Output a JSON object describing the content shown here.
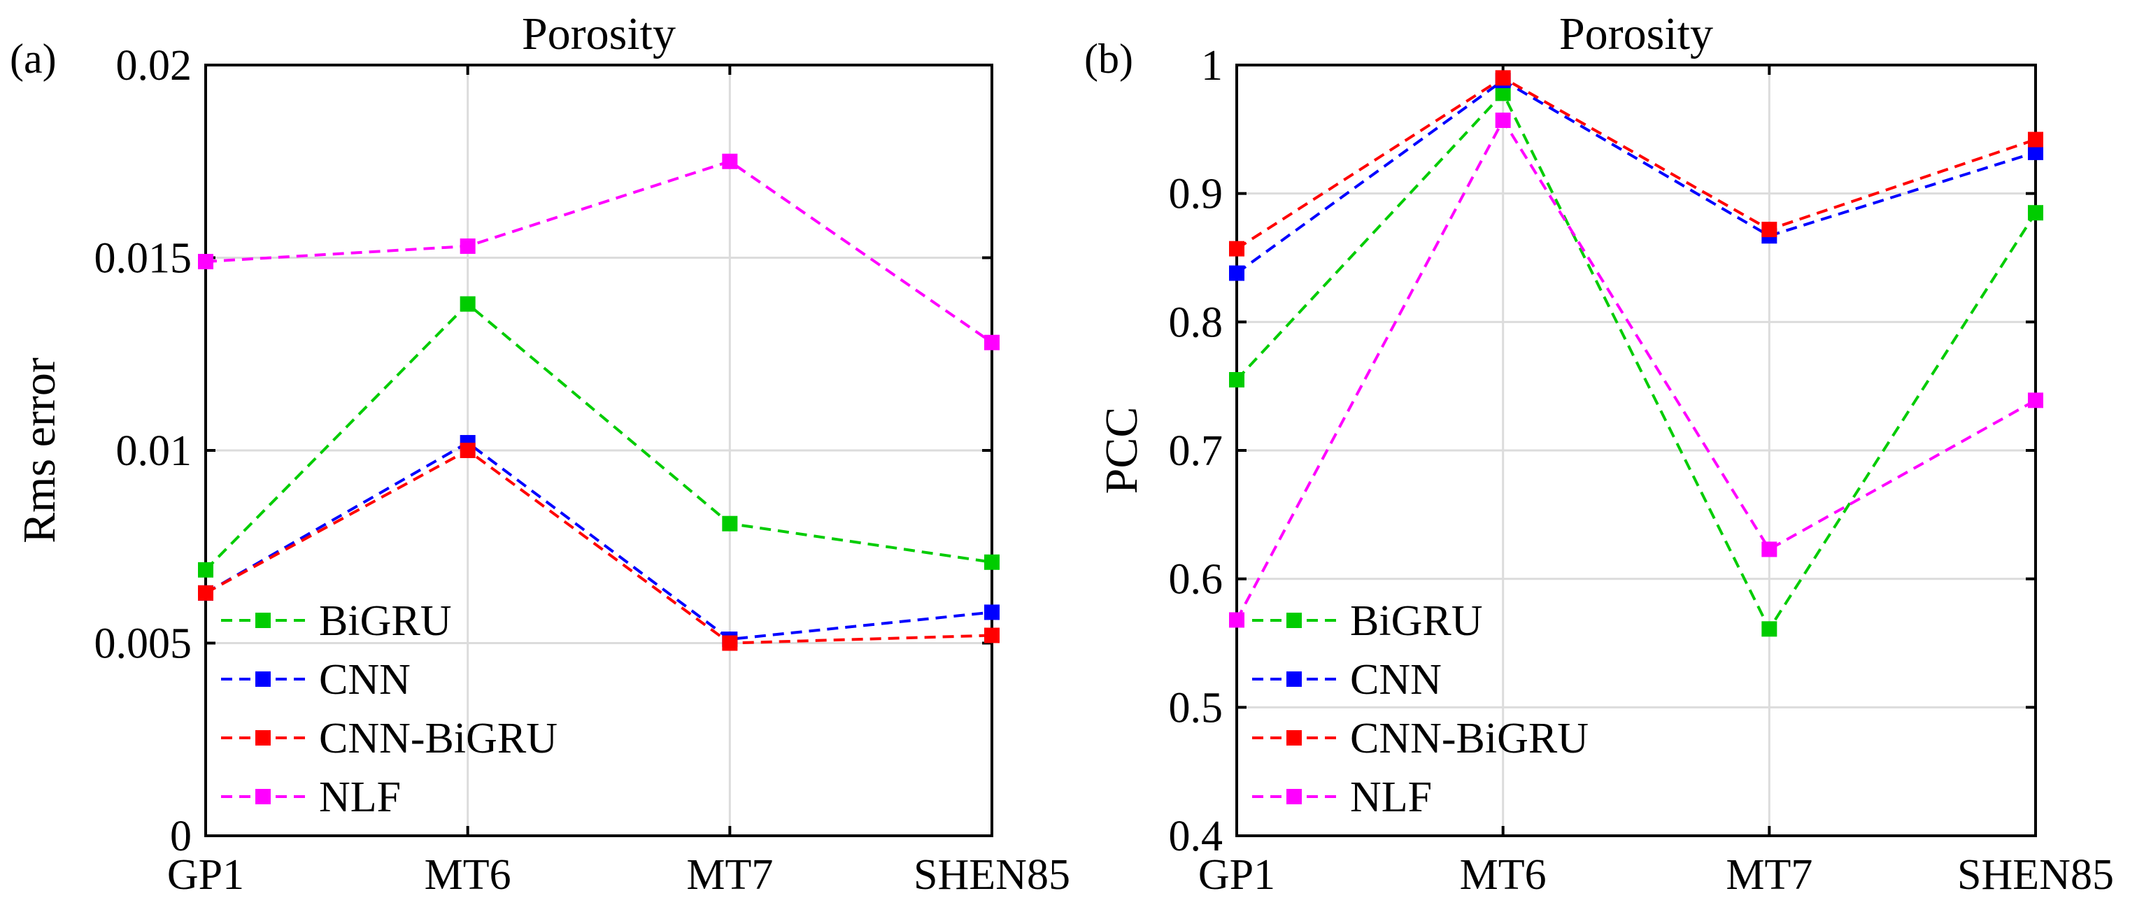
{
  "chart_data": [
    {
      "type": "line",
      "panel_label": "(a)",
      "title": "Porosity",
      "xlabel": "",
      "ylabel": "Rms error",
      "categories": [
        "GP1",
        "MT6",
        "MT7",
        "SHEN85"
      ],
      "ylim": [
        0,
        0.02
      ],
      "yticks": [
        0,
        0.005,
        0.01,
        0.015,
        0.02
      ],
      "ytick_labels": [
        "0",
        "0.005",
        "0.01",
        "0.015",
        "0.02"
      ],
      "grid": true,
      "legend_position": "bottom-left",
      "series": [
        {
          "name": "BiGRU",
          "color": "#00cc00",
          "values": [
            0.0069,
            0.0138,
            0.0081,
            0.0071
          ]
        },
        {
          "name": "CNN",
          "color": "#0000ff",
          "values": [
            0.0063,
            0.0102,
            0.0051,
            0.0058
          ]
        },
        {
          "name": "CNN-BiGRU",
          "color": "#ff0000",
          "values": [
            0.0063,
            0.01,
            0.005,
            0.0052
          ]
        },
        {
          "name": "NLF",
          "color": "#ff00ff",
          "values": [
            0.0149,
            0.0153,
            0.0175,
            0.0128
          ]
        }
      ]
    },
    {
      "type": "line",
      "panel_label": "(b)",
      "title": "Porosity",
      "xlabel": "",
      "ylabel": "PCC",
      "categories": [
        "GP1",
        "MT6",
        "MT7",
        "SHEN85"
      ],
      "ylim": [
        0.4,
        1.0
      ],
      "yticks": [
        0.4,
        0.5,
        0.6,
        0.7,
        0.8,
        0.9,
        1.0
      ],
      "ytick_labels": [
        "0.4",
        "0.5",
        "0.6",
        "0.7",
        "0.8",
        "0.9",
        "1"
      ],
      "grid": true,
      "legend_position": "bottom-left",
      "series": [
        {
          "name": "BiGRU",
          "color": "#00cc00",
          "values": [
            0.755,
            0.978,
            0.561,
            0.885
          ]
        },
        {
          "name": "CNN",
          "color": "#0000ff",
          "values": [
            0.838,
            0.988,
            0.867,
            0.932
          ]
        },
        {
          "name": "CNN-BiGRU",
          "color": "#ff0000",
          "values": [
            0.857,
            0.99,
            0.872,
            0.942
          ]
        },
        {
          "name": "NLF",
          "color": "#ff00ff",
          "values": [
            0.568,
            0.957,
            0.623,
            0.739
          ]
        }
      ]
    }
  ]
}
